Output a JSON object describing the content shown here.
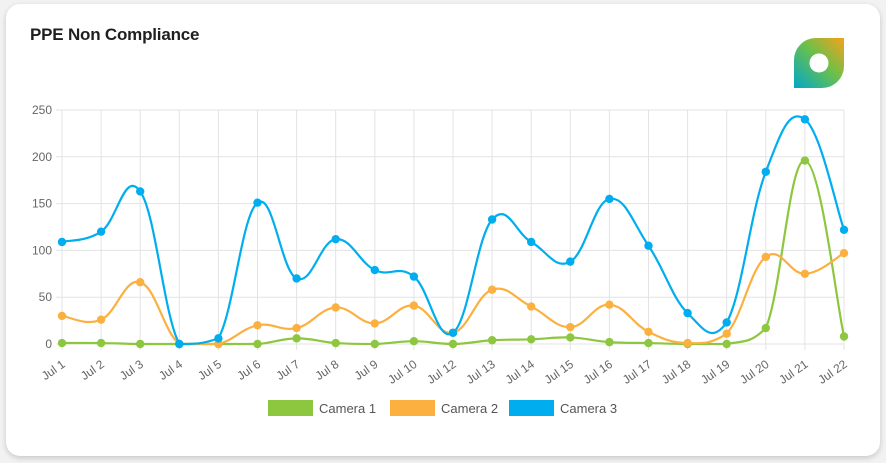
{
  "card": {
    "title": "PPE Non Compliance"
  },
  "logo": {
    "icon": "brand-logo-icon"
  },
  "chart_data": {
    "type": "line",
    "title": "PPE Non Compliance",
    "categories": [
      "Jul 1",
      "Jul 2",
      "Jul 3",
      "Jul 4",
      "Jul 5",
      "Jul 6",
      "Jul 7",
      "Jul 8",
      "Jul 9",
      "Jul 10",
      "Jul 12",
      "Jul 13",
      "Jul 14",
      "Jul 15",
      "Jul 16",
      "Jul 17",
      "Jul 18",
      "Jul 19",
      "Jul 20",
      "Jul 21",
      "Jul 22"
    ],
    "ylim": [
      0,
      250
    ],
    "yticks": [
      0,
      50,
      100,
      150,
      200,
      250
    ],
    "grid": true,
    "legend_position": "bottom",
    "series": [
      {
        "name": "Camera 1",
        "color": "#8dc63f",
        "values": [
          1,
          1,
          0,
          0,
          0,
          0,
          6,
          1,
          0,
          3,
          0,
          4,
          5,
          7,
          2,
          1,
          0,
          0,
          17,
          196,
          8
        ]
      },
      {
        "name": "Camera 2",
        "color": "#fbb040",
        "values": [
          30,
          26,
          66,
          0,
          0,
          20,
          17,
          39,
          22,
          41,
          12,
          58,
          40,
          18,
          42,
          13,
          1,
          11,
          93,
          75,
          97
        ]
      },
      {
        "name": "Camera 3",
        "color": "#00aeef",
        "values": [
          109,
          120,
          163,
          0,
          6,
          151,
          70,
          112,
          79,
          72,
          12,
          133,
          109,
          88,
          155,
          105,
          33,
          23,
          184,
          240,
          122
        ]
      }
    ]
  }
}
